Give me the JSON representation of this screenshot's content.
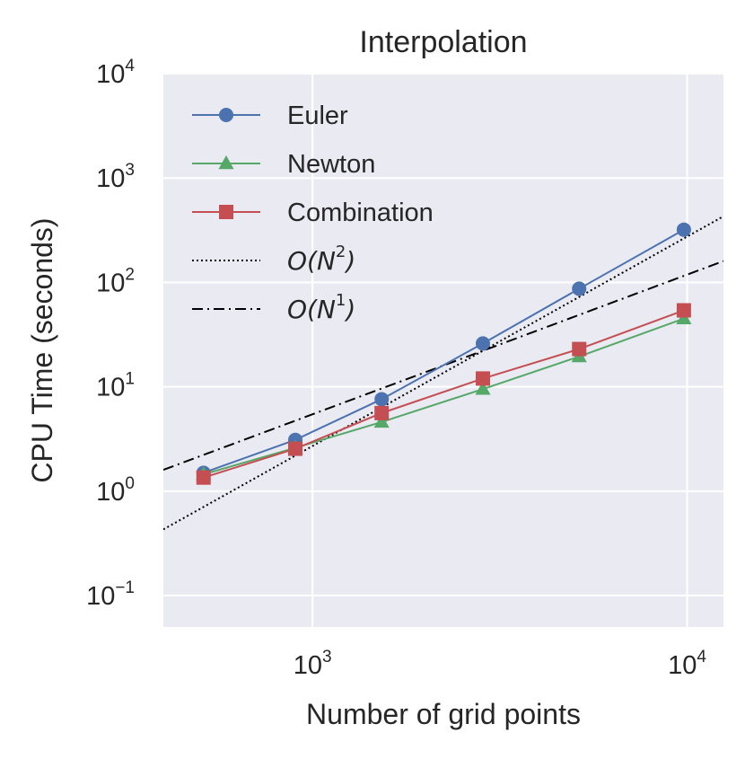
{
  "chart_data": {
    "type": "line",
    "title": "Interpolation",
    "xlabel": "Number of grid points",
    "ylabel": "CPU Time (seconds)",
    "xscale": "log",
    "yscale": "log",
    "xlim": [
      400,
      12500
    ],
    "ylim": [
      0.05,
      10000
    ],
    "grid": true,
    "legend_position": "top-left",
    "x_ticks": [
      {
        "value": 1000,
        "base": "10",
        "exp": "3"
      },
      {
        "value": 10000,
        "base": "10",
        "exp": "4"
      }
    ],
    "y_ticks": [
      {
        "value": 0.1,
        "base": "10",
        "exp": "−1"
      },
      {
        "value": 1,
        "base": "10",
        "exp": "0"
      },
      {
        "value": 10,
        "base": "10",
        "exp": "1"
      },
      {
        "value": 100,
        "base": "10",
        "exp": "2"
      },
      {
        "value": 1000,
        "base": "10",
        "exp": "3"
      },
      {
        "value": 10000,
        "base": "10",
        "exp": "4"
      }
    ],
    "series": [
      {
        "name": "Euler",
        "color": "#4c72b0",
        "marker": "circle",
        "line": "solid",
        "x": [
          512,
          900,
          1530,
          2850,
          5150,
          9800
        ],
        "y": [
          1.5,
          3.1,
          7.6,
          26,
          87,
          320
        ]
      },
      {
        "name": "Newton",
        "color": "#55a868",
        "marker": "triangle",
        "line": "solid",
        "x": [
          512,
          900,
          1530,
          2850,
          5150,
          9800
        ],
        "y": [
          1.45,
          2.6,
          4.6,
          9.5,
          19.5,
          45
        ]
      },
      {
        "name": "Combination",
        "color": "#c44e52",
        "marker": "square",
        "line": "solid",
        "x": [
          512,
          900,
          1530,
          2850,
          5150,
          9800
        ],
        "y": [
          1.35,
          2.55,
          5.6,
          12,
          23,
          54
        ]
      },
      {
        "name": "O(N^2)",
        "label_base": "O(N",
        "label_exp": "2",
        "label_close": ")",
        "color": "#000000",
        "marker": "none",
        "line": "dotted",
        "x": [
          400,
          12500
        ],
        "y": [
          0.43,
          430
        ]
      },
      {
        "name": "O(N^1)",
        "label_base": "O(N",
        "label_exp": "1",
        "label_close": ")",
        "color": "#000000",
        "marker": "none",
        "line": "dashdot",
        "x": [
          400,
          12500
        ],
        "y": [
          1.6,
          160
        ]
      }
    ]
  }
}
